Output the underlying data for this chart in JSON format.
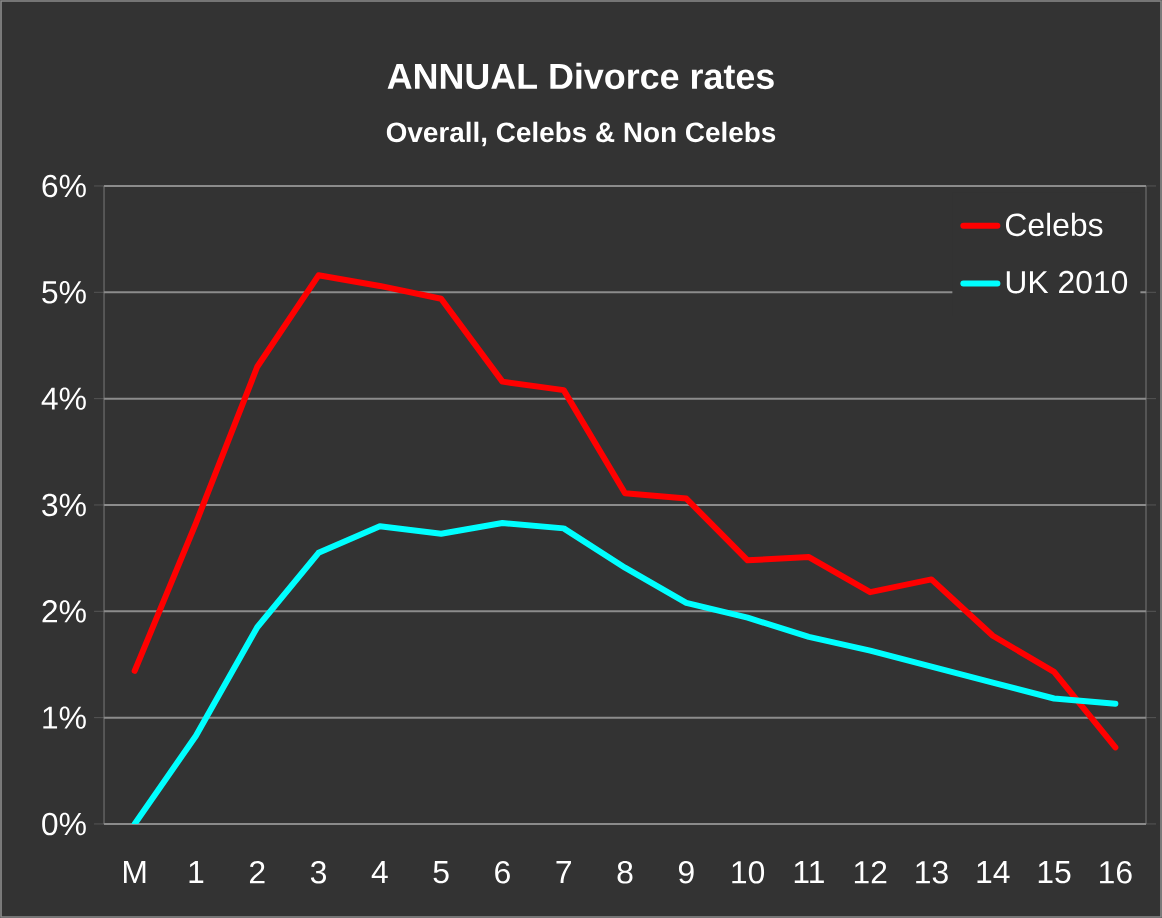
{
  "chart_data": {
    "type": "line",
    "title": "ANNUAL Divorce rates",
    "subtitle": "Overall, Celebs & Non Celebs",
    "categories": [
      "M",
      "1",
      "2",
      "3",
      "4",
      "5",
      "6",
      "7",
      "8",
      "9",
      "10",
      "11",
      "12",
      "13",
      "14",
      "15",
      "16"
    ],
    "series": [
      {
        "name": "Celebs",
        "color": "#ff0000",
        "values": [
          1.44,
          2.83,
          4.3,
          5.16,
          5.06,
          4.94,
          4.16,
          4.08,
          3.11,
          3.06,
          2.48,
          2.51,
          2.18,
          2.3,
          1.77,
          1.43,
          0.72
        ]
      },
      {
        "name": "UK 2010",
        "color": "#00ffff",
        "values": [
          0,
          0.83,
          1.85,
          2.55,
          2.8,
          2.73,
          2.83,
          2.78,
          2.41,
          2.08,
          1.94,
          1.76,
          1.63,
          1.48,
          1.33,
          1.18,
          1.13
        ]
      }
    ],
    "ylim": [
      0,
      6
    ],
    "yticks": [
      {
        "value": 0,
        "label": "0%"
      },
      {
        "value": 1,
        "label": "1%"
      },
      {
        "value": 2,
        "label": "2%"
      },
      {
        "value": 3,
        "label": "3%"
      },
      {
        "value": 4,
        "label": "4%"
      },
      {
        "value": 5,
        "label": "5%"
      },
      {
        "value": 6,
        "label": "6%"
      }
    ],
    "grid": "y",
    "legend": "top right",
    "marker": "none",
    "line_style": "solid"
  }
}
